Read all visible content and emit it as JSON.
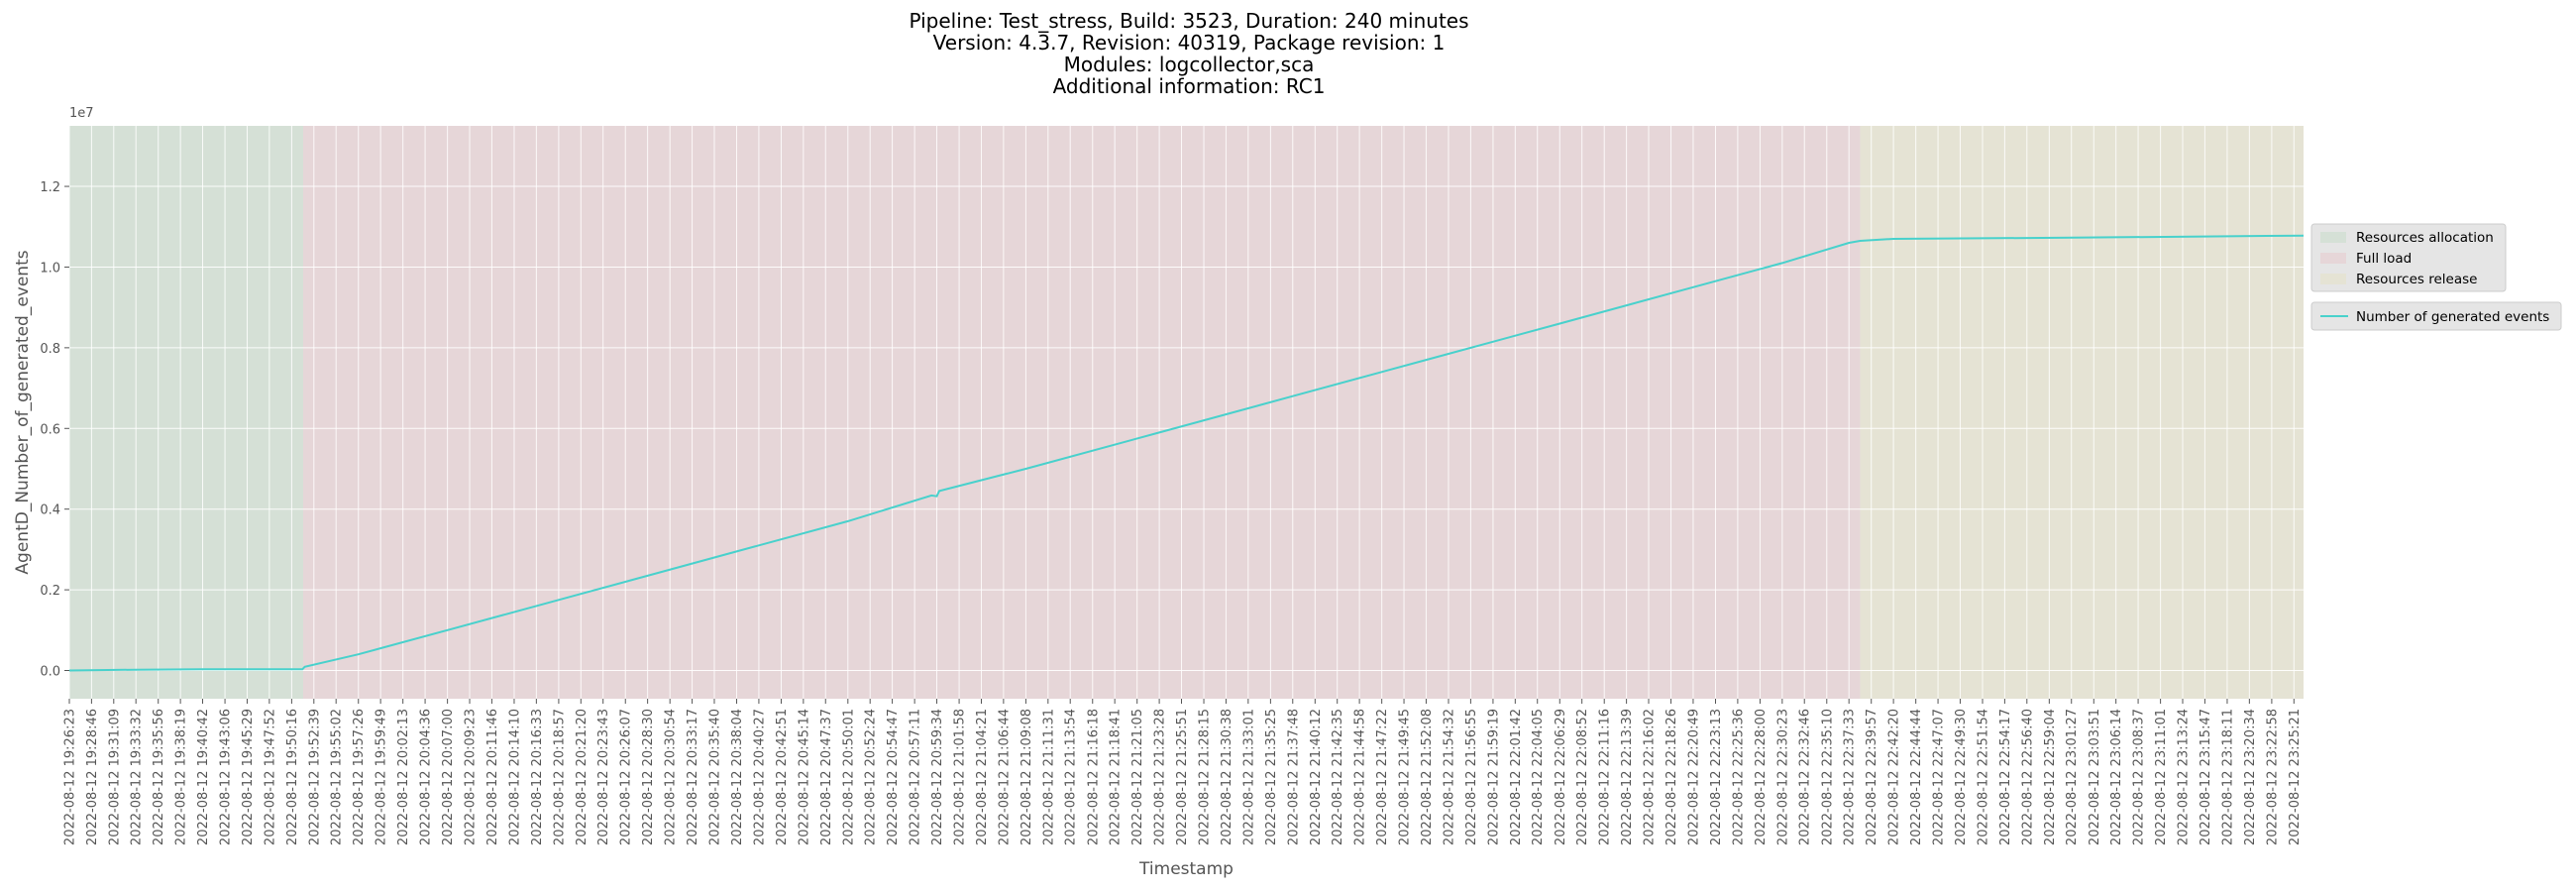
{
  "title_lines": [
    "Pipeline: Test_stress, Build: 3523, Duration: 240 minutes",
    "Version: 4.3.7, Revision: 40319, Package revision: 1",
    "Modules: logcollector,sca",
    "Additional information: RC1"
  ],
  "colors": {
    "background": "#e5e5e5",
    "grid": "#ffffff",
    "line": "#48d1cc",
    "phase_allocation": "#d5e0d6",
    "phase_full_load": "#e6d6d8",
    "phase_release": "#e5e3d4"
  },
  "chart_data": {
    "type": "line",
    "xlabel": "Timestamp",
    "ylabel": "AgentD_Number_of_generated_events",
    "y_offset_label": "1e7",
    "ylim": [
      -0.07,
      1.35
    ],
    "y_ticks": [
      "0.0",
      "0.2",
      "0.4",
      "0.6",
      "0.8",
      "1.0",
      "1.2"
    ],
    "y_tick_values": [
      0.0,
      0.2,
      0.4,
      0.6,
      0.8,
      1.0,
      1.2
    ],
    "grid": true,
    "legend_position": "right",
    "x_tick_labels": [
      "2022-08-12 19:26:23",
      "2022-08-12 19:28:46",
      "2022-08-12 19:31:09",
      "2022-08-12 19:33:32",
      "2022-08-12 19:35:56",
      "2022-08-12 19:38:19",
      "2022-08-12 19:40:42",
      "2022-08-12 19:43:06",
      "2022-08-12 19:45:29",
      "2022-08-12 19:47:52",
      "2022-08-12 19:50:16",
      "2022-08-12 19:52:39",
      "2022-08-12 19:55:02",
      "2022-08-12 19:57:26",
      "2022-08-12 19:59:49",
      "2022-08-12 20:02:13",
      "2022-08-12 20:04:36",
      "2022-08-12 20:07:00",
      "2022-08-12 20:09:23",
      "2022-08-12 20:11:46",
      "2022-08-12 20:14:10",
      "2022-08-12 20:16:33",
      "2022-08-12 20:18:57",
      "2022-08-12 20:21:20",
      "2022-08-12 20:23:43",
      "2022-08-12 20:26:07",
      "2022-08-12 20:28:30",
      "2022-08-12 20:30:54",
      "2022-08-12 20:33:17",
      "2022-08-12 20:35:40",
      "2022-08-12 20:38:04",
      "2022-08-12 20:40:27",
      "2022-08-12 20:42:51",
      "2022-08-12 20:45:14",
      "2022-08-12 20:47:37",
      "2022-08-12 20:50:01",
      "2022-08-12 20:52:24",
      "2022-08-12 20:54:47",
      "2022-08-12 20:57:11",
      "2022-08-12 20:59:34",
      "2022-08-12 21:01:58",
      "2022-08-12 21:04:21",
      "2022-08-12 21:06:44",
      "2022-08-12 21:09:08",
      "2022-08-12 21:11:31",
      "2022-08-12 21:13:54",
      "2022-08-12 21:16:18",
      "2022-08-12 21:18:41",
      "2022-08-12 21:21:05",
      "2022-08-12 21:23:28",
      "2022-08-12 21:25:51",
      "2022-08-12 21:28:15",
      "2022-08-12 21:30:38",
      "2022-08-12 21:33:01",
      "2022-08-12 21:35:25",
      "2022-08-12 21:37:48",
      "2022-08-12 21:40:12",
      "2022-08-12 21:42:35",
      "2022-08-12 21:44:58",
      "2022-08-12 21:47:22",
      "2022-08-12 21:49:45",
      "2022-08-12 21:52:08",
      "2022-08-12 21:54:32",
      "2022-08-12 21:56:55",
      "2022-08-12 21:59:19",
      "2022-08-12 22:01:42",
      "2022-08-12 22:04:05",
      "2022-08-12 22:06:29",
      "2022-08-12 22:08:52",
      "2022-08-12 22:11:16",
      "2022-08-12 22:13:39",
      "2022-08-12 22:16:02",
      "2022-08-12 22:18:26",
      "2022-08-12 22:20:49",
      "2022-08-12 22:23:13",
      "2022-08-12 22:25:36",
      "2022-08-12 22:28:00",
      "2022-08-12 22:30:23",
      "2022-08-12 22:32:46",
      "2022-08-12 22:35:10",
      "2022-08-12 22:37:33",
      "2022-08-12 22:39:57",
      "2022-08-12 22:42:20",
      "2022-08-12 22:44:44",
      "2022-08-12 22:47:07",
      "2022-08-12 22:49:30",
      "2022-08-12 22:51:54",
      "2022-08-12 22:54:17",
      "2022-08-12 22:56:40",
      "2022-08-12 22:59:04",
      "2022-08-12 23:01:27",
      "2022-08-12 23:03:51",
      "2022-08-12 23:06:14",
      "2022-08-12 23:08:37",
      "2022-08-12 23:11:01",
      "2022-08-12 23:13:24",
      "2022-08-12 23:15:47",
      "2022-08-12 23:18:11",
      "2022-08-12 23:20:34",
      "2022-08-12 23:22:58",
      "2022-08-12 23:25:21"
    ],
    "x_start": "2022-08-12 19:26:23",
    "x_end": "2022-08-12 23:26:23",
    "phases": [
      {
        "name": "Resources allocation",
        "start": "2022-08-12 19:26:23",
        "end": "2022-08-12 19:51:30"
      },
      {
        "name": "Full load",
        "start": "2022-08-12 19:51:30",
        "end": "2022-08-12 22:38:45"
      },
      {
        "name": "Resources release",
        "start": "2022-08-12 22:38:45",
        "end": "2022-08-12 23:26:23"
      }
    ],
    "series": [
      {
        "name": "Number of generated events",
        "points": [
          [
            "2022-08-12 19:26:23",
            0.0
          ],
          [
            "2022-08-12 19:33:32",
            0.002
          ],
          [
            "2022-08-12 19:40:42",
            0.003
          ],
          [
            "2022-08-12 19:51:25",
            0.003
          ],
          [
            "2022-08-12 19:51:40",
            0.009
          ],
          [
            "2022-08-12 19:57:26",
            0.04
          ],
          [
            "2022-08-12 20:07:00",
            0.1
          ],
          [
            "2022-08-12 20:21:20",
            0.19
          ],
          [
            "2022-08-12 20:35:40",
            0.28
          ],
          [
            "2022-08-12 20:50:01",
            0.37
          ],
          [
            "2022-08-12 20:59:00",
            0.434
          ],
          [
            "2022-08-12 20:59:34",
            0.432
          ],
          [
            "2022-08-12 20:59:50",
            0.445
          ],
          [
            "2022-08-12 21:09:08",
            0.5
          ],
          [
            "2022-08-12 21:23:28",
            0.59
          ],
          [
            "2022-08-12 21:37:48",
            0.68
          ],
          [
            "2022-08-12 21:52:08",
            0.77
          ],
          [
            "2022-08-12 22:06:29",
            0.86
          ],
          [
            "2022-08-12 22:20:49",
            0.95
          ],
          [
            "2022-08-12 22:30:23",
            1.01
          ],
          [
            "2022-08-12 22:37:33",
            1.06
          ],
          [
            "2022-08-12 22:38:45",
            1.065
          ],
          [
            "2022-08-12 22:42:20",
            1.07
          ],
          [
            "2022-08-12 23:01:27",
            1.073
          ],
          [
            "2022-08-12 23:26:23",
            1.078
          ]
        ]
      }
    ]
  }
}
